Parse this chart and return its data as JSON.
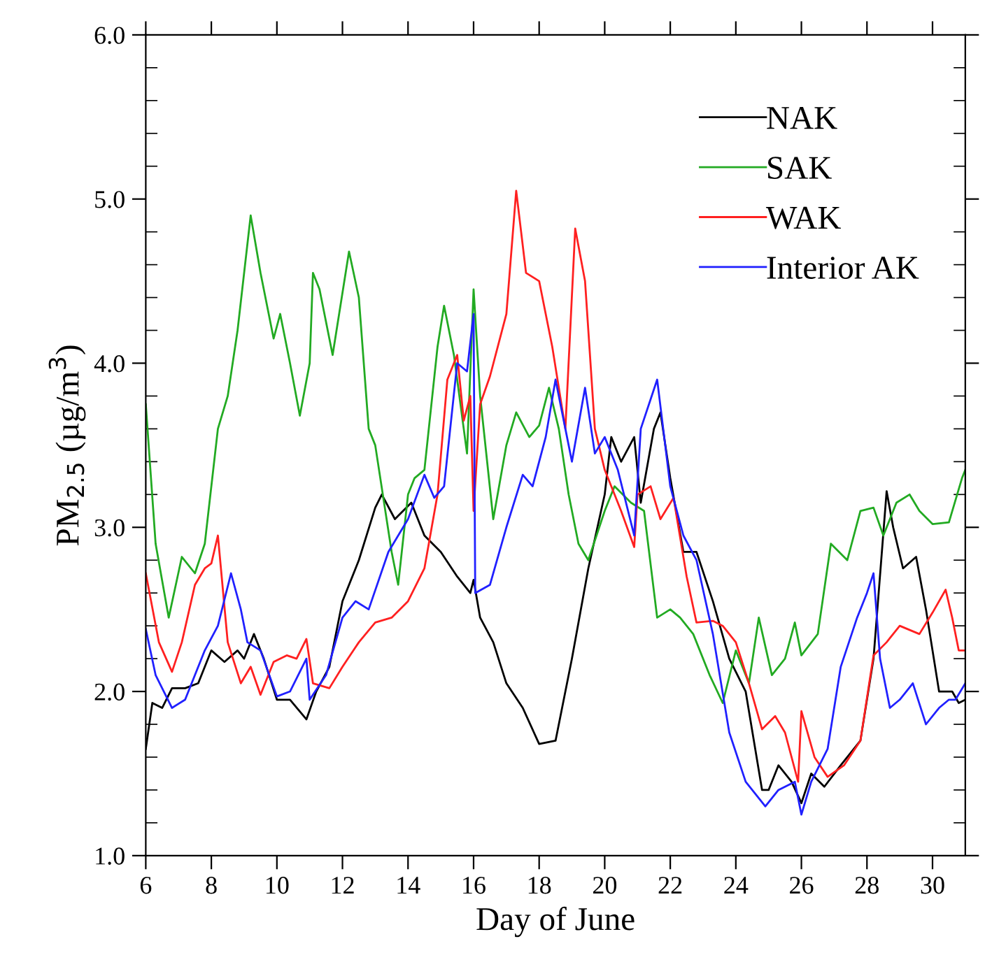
{
  "chart_data": {
    "type": "line",
    "xlabel": "Day of June",
    "ylabel": "PM$_{2.5}$ (µg/m$^{3}$)",
    "xlim": [
      6,
      31
    ],
    "xticks": [
      6,
      8,
      10,
      12,
      14,
      16,
      18,
      20,
      22,
      24,
      26,
      28,
      30
    ],
    "ylim": [
      1,
      6
    ],
    "yticks": [
      {
        "value": 1,
        "label": "1.0"
      },
      {
        "value": 1.2,
        "label": null
      },
      {
        "value": 1.4,
        "label": null
      },
      {
        "value": 1.6,
        "label": null
      },
      {
        "value": 1.8,
        "label": null
      },
      {
        "value": 2,
        "label": "2.0"
      },
      {
        "value": 2.2,
        "label": null
      },
      {
        "value": 2.4,
        "label": null
      },
      {
        "value": 2.6,
        "label": null
      },
      {
        "value": 2.8,
        "label": null
      },
      {
        "value": 3,
        "label": "3.0"
      },
      {
        "value": 3.2,
        "label": null
      },
      {
        "value": 3.4,
        "label": null
      },
      {
        "value": 3.6,
        "label": null
      },
      {
        "value": 3.8,
        "label": null
      },
      {
        "value": 4,
        "label": "4.0"
      },
      {
        "value": 4.2,
        "label": null
      },
      {
        "value": 4.4,
        "label": null
      },
      {
        "value": 4.6,
        "label": null
      },
      {
        "value": 4.8,
        "label": null
      },
      {
        "value": 5,
        "label": "5.0"
      },
      {
        "value": 5.2,
        "label": null
      },
      {
        "value": 5.4,
        "label": null
      },
      {
        "value": 5.6,
        "label": null
      },
      {
        "value": 5.8,
        "label": null
      },
      {
        "value": 6,
        "label": "6.0"
      }
    ],
    "legend": "top right",
    "grid": false,
    "marker": "none",
    "line_style": "solid",
    "series": [
      {
        "name": "NAK",
        "color": "#000000",
        "x": [
          6.0,
          6.2,
          6.5,
          6.8,
          7.2,
          7.6,
          8.0,
          8.4,
          8.8,
          9.0,
          9.3,
          9.6,
          10.0,
          10.4,
          10.9,
          11.2,
          11.6,
          12.0,
          12.5,
          13.0,
          13.2,
          13.6,
          14.1,
          14.5,
          15.0,
          15.5,
          15.9,
          16.0,
          16.2,
          16.6,
          17.0,
          17.5,
          18.0,
          18.5,
          19.0,
          19.5,
          20.0,
          20.2,
          20.5,
          20.9,
          21.1,
          21.5,
          21.7,
          22.0,
          22.4,
          22.8,
          23.3,
          23.8,
          24.3,
          24.8,
          25.0,
          25.3,
          25.7,
          26.0,
          26.3,
          26.7,
          27.2,
          27.8,
          28.2,
          28.6,
          28.8,
          29.1,
          29.5,
          29.8,
          30.2,
          30.6,
          30.8,
          31.0
        ],
        "values": [
          1.65,
          1.93,
          1.9,
          2.02,
          2.02,
          2.05,
          2.25,
          2.18,
          2.25,
          2.2,
          2.35,
          2.2,
          1.95,
          1.95,
          1.83,
          2.0,
          2.15,
          2.55,
          2.8,
          3.12,
          3.2,
          3.05,
          3.15,
          2.95,
          2.85,
          2.7,
          2.6,
          2.68,
          2.45,
          2.3,
          2.05,
          1.9,
          1.68,
          1.7,
          2.2,
          2.75,
          3.2,
          3.55,
          3.4,
          3.55,
          3.15,
          3.6,
          3.7,
          3.3,
          2.85,
          2.85,
          2.55,
          2.2,
          2.0,
          1.4,
          1.4,
          1.55,
          1.45,
          1.32,
          1.5,
          1.42,
          1.55,
          1.7,
          2.2,
          3.22,
          3.0,
          2.75,
          2.82,
          2.5,
          2.0,
          2.0,
          1.93,
          1.95
        ]
      },
      {
        "name": "SAK",
        "color": "#22aa22",
        "x": [
          6.0,
          6.3,
          6.7,
          7.1,
          7.5,
          7.8,
          8.2,
          8.5,
          8.8,
          9.2,
          9.5,
          9.9,
          10.1,
          10.4,
          10.7,
          11.0,
          11.1,
          11.3,
          11.7,
          12.2,
          12.5,
          12.8,
          13.0,
          13.5,
          13.7,
          14.0,
          14.2,
          14.5,
          14.9,
          15.1,
          15.4,
          15.8,
          16.0,
          16.2,
          16.6,
          17.0,
          17.3,
          17.7,
          18.0,
          18.3,
          18.6,
          18.9,
          19.2,
          19.5,
          20.0,
          20.3,
          20.8,
          21.2,
          21.6,
          22.0,
          22.3,
          22.7,
          23.2,
          23.6,
          24.0,
          24.4,
          24.7,
          25.1,
          25.5,
          25.8,
          26.0,
          26.5,
          26.9,
          27.4,
          27.8,
          28.2,
          28.5,
          28.9,
          29.3,
          29.6,
          30.0,
          30.5,
          30.9,
          31.0
        ],
        "values": [
          3.75,
          2.9,
          2.45,
          2.82,
          2.72,
          2.9,
          3.6,
          3.8,
          4.2,
          4.9,
          4.55,
          4.15,
          4.3,
          4.0,
          3.68,
          4.0,
          4.55,
          4.45,
          4.05,
          4.68,
          4.4,
          3.6,
          3.5,
          2.85,
          2.65,
          3.2,
          3.3,
          3.35,
          4.1,
          4.35,
          4.05,
          3.45,
          4.45,
          3.8,
          3.05,
          3.5,
          3.7,
          3.55,
          3.62,
          3.85,
          3.6,
          3.2,
          2.9,
          2.8,
          3.1,
          3.25,
          3.15,
          3.1,
          2.45,
          2.5,
          2.45,
          2.35,
          2.1,
          1.93,
          2.25,
          2.05,
          2.45,
          2.1,
          2.2,
          2.42,
          2.22,
          2.35,
          2.9,
          2.8,
          3.1,
          3.12,
          2.95,
          3.15,
          3.2,
          3.1,
          3.02,
          3.03,
          3.3,
          3.35
        ]
      },
      {
        "name": "WAK",
        "color": "#ff2020",
        "x": [
          6.0,
          6.4,
          6.8,
          7.1,
          7.5,
          7.8,
          8.0,
          8.2,
          8.5,
          8.9,
          9.2,
          9.5,
          9.9,
          10.3,
          10.6,
          10.9,
          11.1,
          11.6,
          12.0,
          12.5,
          13.0,
          13.5,
          14.0,
          14.5,
          14.9,
          15.2,
          15.5,
          15.7,
          15.9,
          16.0,
          16.2,
          16.5,
          17.0,
          17.3,
          17.6,
          18.0,
          18.4,
          18.8,
          19.1,
          19.4,
          19.7,
          20.0,
          20.5,
          20.9,
          21.0,
          21.4,
          21.7,
          22.1,
          22.5,
          22.8,
          23.3,
          23.6,
          24.0,
          24.4,
          24.8,
          25.2,
          25.5,
          25.9,
          26.0,
          26.4,
          26.8,
          27.3,
          27.8,
          28.2,
          28.6,
          29.0,
          29.6,
          30.0,
          30.4,
          30.6,
          30.8,
          31.0
        ],
        "values": [
          2.72,
          2.3,
          2.12,
          2.3,
          2.65,
          2.75,
          2.78,
          2.95,
          2.3,
          2.05,
          2.15,
          1.98,
          2.18,
          2.22,
          2.2,
          2.32,
          2.05,
          2.02,
          2.15,
          2.3,
          2.42,
          2.45,
          2.55,
          2.75,
          3.2,
          3.9,
          4.05,
          3.65,
          3.8,
          3.1,
          3.75,
          3.92,
          4.3,
          5.05,
          4.55,
          4.5,
          4.1,
          3.6,
          4.82,
          4.5,
          3.6,
          3.35,
          3.1,
          2.88,
          3.2,
          3.25,
          3.05,
          3.18,
          2.7,
          2.42,
          2.43,
          2.4,
          2.3,
          2.05,
          1.77,
          1.85,
          1.75,
          1.45,
          1.88,
          1.6,
          1.48,
          1.55,
          1.7,
          2.22,
          2.3,
          2.4,
          2.35,
          2.48,
          2.62,
          2.45,
          2.25,
          2.25
        ]
      },
      {
        "name": "Interior AK",
        "color": "#2020ff",
        "x": [
          6.0,
          6.3,
          6.8,
          7.2,
          7.8,
          8.2,
          8.6,
          8.9,
          9.1,
          9.5,
          10.0,
          10.4,
          10.9,
          11.0,
          11.5,
          12.0,
          12.4,
          12.8,
          13.4,
          14.0,
          14.5,
          14.8,
          15.1,
          15.5,
          15.8,
          16.0,
          16.05,
          16.5,
          17.0,
          17.5,
          17.8,
          18.2,
          18.5,
          18.8,
          19.0,
          19.4,
          19.7,
          20.0,
          20.4,
          20.9,
          21.1,
          21.6,
          22.0,
          22.4,
          22.8,
          23.3,
          23.8,
          24.3,
          24.9,
          25.3,
          25.8,
          26.0,
          26.3,
          26.8,
          27.2,
          27.7,
          28.0,
          28.2,
          28.4,
          28.7,
          29.0,
          29.4,
          29.8,
          30.2,
          30.5,
          30.7,
          31.0
        ],
        "values": [
          2.38,
          2.1,
          1.9,
          1.95,
          2.25,
          2.4,
          2.72,
          2.5,
          2.3,
          2.25,
          1.97,
          2.0,
          2.2,
          1.95,
          2.1,
          2.45,
          2.55,
          2.5,
          2.85,
          3.05,
          3.32,
          3.18,
          3.25,
          4.0,
          3.95,
          4.3,
          2.6,
          2.65,
          3.0,
          3.32,
          3.25,
          3.55,
          3.9,
          3.6,
          3.4,
          3.85,
          3.45,
          3.55,
          3.35,
          2.95,
          3.6,
          3.9,
          3.25,
          2.95,
          2.8,
          2.35,
          1.75,
          1.45,
          1.3,
          1.4,
          1.45,
          1.25,
          1.45,
          1.65,
          2.15,
          2.45,
          2.6,
          2.72,
          2.2,
          1.9,
          1.95,
          2.05,
          1.8,
          1.9,
          1.95,
          1.95,
          2.05
        ]
      }
    ]
  }
}
